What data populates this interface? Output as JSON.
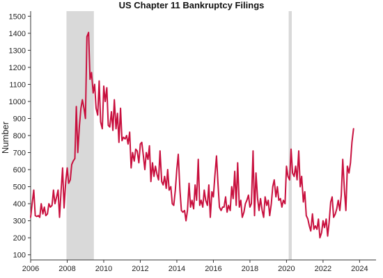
{
  "chart_data": {
    "type": "line",
    "title": "US Chapter 11 Bankruptcy Filings",
    "xlabel": "",
    "ylabel": "Number",
    "xlim": [
      2006.0,
      2024.9
    ],
    "ylim": [
      70,
      1530
    ],
    "x_ticks": [
      "2006",
      "2008",
      "2010",
      "2012",
      "2014",
      "2016",
      "2018",
      "2020",
      "2022",
      "2024"
    ],
    "y_ticks": [
      "100",
      "200",
      "300",
      "400",
      "500",
      "600",
      "700",
      "800",
      "900",
      "1000",
      "1100",
      "1200",
      "1300",
      "1400",
      "1500"
    ],
    "grid": false,
    "legend": "none",
    "colors": {
      "line": "#c8103e",
      "recession": "#d9d9d9",
      "axis": "#333333"
    },
    "recessions": [
      {
        "start": 2007.96,
        "end": 2009.46
      },
      {
        "start": 2020.12,
        "end": 2020.29
      }
    ],
    "series": [
      {
        "values": [
          [
            2006.0,
            320
          ],
          [
            2006.08,
            400
          ],
          [
            2006.17,
            480
          ],
          [
            2006.25,
            330
          ],
          [
            2006.33,
            325
          ],
          [
            2006.42,
            330
          ],
          [
            2006.5,
            320
          ],
          [
            2006.58,
            400
          ],
          [
            2006.67,
            340
          ],
          [
            2006.75,
            380
          ],
          [
            2006.83,
            330
          ],
          [
            2006.92,
            340
          ],
          [
            2007.0,
            400
          ],
          [
            2007.08,
            380
          ],
          [
            2007.17,
            390
          ],
          [
            2007.25,
            480
          ],
          [
            2007.33,
            400
          ],
          [
            2007.42,
            440
          ],
          [
            2007.5,
            480
          ],
          [
            2007.58,
            320
          ],
          [
            2007.67,
            480
          ],
          [
            2007.75,
            610
          ],
          [
            2007.83,
            375
          ],
          [
            2007.92,
            530
          ],
          [
            2008.0,
            610
          ],
          [
            2008.08,
            520
          ],
          [
            2008.17,
            540
          ],
          [
            2008.25,
            630
          ],
          [
            2008.33,
            650
          ],
          [
            2008.42,
            665
          ],
          [
            2008.5,
            970
          ],
          [
            2008.58,
            700
          ],
          [
            2008.67,
            860
          ],
          [
            2008.75,
            960
          ],
          [
            2008.83,
            1010
          ],
          [
            2008.92,
            960
          ],
          [
            2009.0,
            900
          ],
          [
            2009.08,
            1380
          ],
          [
            2009.17,
            1405
          ],
          [
            2009.25,
            1130
          ],
          [
            2009.33,
            1170
          ],
          [
            2009.42,
            1050
          ],
          [
            2009.5,
            1100
          ],
          [
            2009.58,
            960
          ],
          [
            2009.67,
            920
          ],
          [
            2009.75,
            1120
          ],
          [
            2009.83,
            880
          ],
          [
            2009.92,
            840
          ],
          [
            2010.0,
            1090
          ],
          [
            2010.08,
            1000
          ],
          [
            2010.17,
            1080
          ],
          [
            2010.25,
            860
          ],
          [
            2010.33,
            850
          ],
          [
            2010.42,
            940
          ],
          [
            2010.5,
            830
          ],
          [
            2010.58,
            1010
          ],
          [
            2010.67,
            840
          ],
          [
            2010.75,
            930
          ],
          [
            2010.83,
            760
          ],
          [
            2010.92,
            960
          ],
          [
            2011.0,
            770
          ],
          [
            2011.08,
            790
          ],
          [
            2011.17,
            780
          ],
          [
            2011.25,
            800
          ],
          [
            2011.33,
            750
          ],
          [
            2011.42,
            820
          ],
          [
            2011.5,
            610
          ],
          [
            2011.58,
            700
          ],
          [
            2011.67,
            650
          ],
          [
            2011.75,
            720
          ],
          [
            2011.83,
            710
          ],
          [
            2011.92,
            640
          ],
          [
            2012.0,
            750
          ],
          [
            2012.08,
            760
          ],
          [
            2012.17,
            680
          ],
          [
            2012.25,
            600
          ],
          [
            2012.33,
            700
          ],
          [
            2012.42,
            660
          ],
          [
            2012.5,
            740
          ],
          [
            2012.58,
            530
          ],
          [
            2012.67,
            640
          ],
          [
            2012.75,
            560
          ],
          [
            2012.83,
            620
          ],
          [
            2012.92,
            570
          ],
          [
            2013.0,
            540
          ],
          [
            2013.08,
            710
          ],
          [
            2013.17,
            530
          ],
          [
            2013.25,
            510
          ],
          [
            2013.33,
            560
          ],
          [
            2013.42,
            490
          ],
          [
            2013.5,
            600
          ],
          [
            2013.58,
            480
          ],
          [
            2013.67,
            500
          ],
          [
            2013.75,
            400
          ],
          [
            2013.83,
            390
          ],
          [
            2013.92,
            480
          ],
          [
            2014.0,
            600
          ],
          [
            2014.08,
            690
          ],
          [
            2014.17,
            480
          ],
          [
            2014.25,
            360
          ],
          [
            2014.33,
            350
          ],
          [
            2014.42,
            360
          ],
          [
            2014.5,
            300
          ],
          [
            2014.58,
            360
          ],
          [
            2014.67,
            520
          ],
          [
            2014.75,
            380
          ],
          [
            2014.83,
            420
          ],
          [
            2014.92,
            370
          ],
          [
            2015.0,
            510
          ],
          [
            2015.08,
            420
          ],
          [
            2015.17,
            660
          ],
          [
            2015.25,
            390
          ],
          [
            2015.33,
            420
          ],
          [
            2015.42,
            380
          ],
          [
            2015.5,
            480
          ],
          [
            2015.58,
            420
          ],
          [
            2015.67,
            390
          ],
          [
            2015.75,
            510
          ],
          [
            2015.83,
            320
          ],
          [
            2015.92,
            470
          ],
          [
            2016.0,
            440
          ],
          [
            2016.08,
            560
          ],
          [
            2016.17,
            680
          ],
          [
            2016.25,
            520
          ],
          [
            2016.33,
            380
          ],
          [
            2016.42,
            360
          ],
          [
            2016.5,
            380
          ],
          [
            2016.58,
            380
          ],
          [
            2016.67,
            440
          ],
          [
            2016.75,
            350
          ],
          [
            2016.83,
            390
          ],
          [
            2016.92,
            360
          ],
          [
            2017.0,
            500
          ],
          [
            2017.08,
            430
          ],
          [
            2017.17,
            590
          ],
          [
            2017.25,
            390
          ],
          [
            2017.33,
            640
          ],
          [
            2017.42,
            380
          ],
          [
            2017.5,
            420
          ],
          [
            2017.58,
            320
          ],
          [
            2017.67,
            350
          ],
          [
            2017.75,
            400
          ],
          [
            2017.83,
            420
          ],
          [
            2017.92,
            450
          ],
          [
            2018.0,
            380
          ],
          [
            2018.08,
            400
          ],
          [
            2018.17,
            710
          ],
          [
            2018.25,
            330
          ],
          [
            2018.33,
            580
          ],
          [
            2018.42,
            430
          ],
          [
            2018.5,
            360
          ],
          [
            2018.58,
            430
          ],
          [
            2018.67,
            360
          ],
          [
            2018.75,
            320
          ],
          [
            2018.83,
            440
          ],
          [
            2018.92,
            390
          ],
          [
            2019.0,
            420
          ],
          [
            2019.08,
            330
          ],
          [
            2019.17,
            400
          ],
          [
            2019.25,
            500
          ],
          [
            2019.33,
            540
          ],
          [
            2019.42,
            440
          ],
          [
            2019.5,
            500
          ],
          [
            2019.58,
            420
          ],
          [
            2019.67,
            430
          ],
          [
            2019.75,
            380
          ],
          [
            2019.83,
            420
          ],
          [
            2019.92,
            400
          ],
          [
            2020.0,
            620
          ],
          [
            2020.08,
            560
          ],
          [
            2020.17,
            540
          ],
          [
            2020.25,
            720
          ],
          [
            2020.33,
            580
          ],
          [
            2020.42,
            560
          ],
          [
            2020.5,
            620
          ],
          [
            2020.58,
            540
          ],
          [
            2020.67,
            710
          ],
          [
            2020.75,
            500
          ],
          [
            2020.83,
            560
          ],
          [
            2020.92,
            410
          ],
          [
            2021.0,
            470
          ],
          [
            2021.08,
            330
          ],
          [
            2021.17,
            310
          ],
          [
            2021.25,
            270
          ],
          [
            2021.33,
            240
          ],
          [
            2021.42,
            340
          ],
          [
            2021.5,
            250
          ],
          [
            2021.58,
            270
          ],
          [
            2021.67,
            250
          ],
          [
            2021.75,
            310
          ],
          [
            2021.83,
            200
          ],
          [
            2021.92,
            230
          ],
          [
            2022.0,
            300
          ],
          [
            2022.08,
            260
          ],
          [
            2022.17,
            310
          ],
          [
            2022.25,
            210
          ],
          [
            2022.33,
            290
          ],
          [
            2022.42,
            410
          ],
          [
            2022.5,
            440
          ],
          [
            2022.58,
            320
          ],
          [
            2022.67,
            340
          ],
          [
            2022.75,
            370
          ],
          [
            2022.83,
            420
          ],
          [
            2022.92,
            360
          ],
          [
            2023.0,
            450
          ],
          [
            2023.08,
            660
          ],
          [
            2023.17,
            480
          ],
          [
            2023.25,
            360
          ],
          [
            2023.33,
            620
          ],
          [
            2023.42,
            580
          ],
          [
            2023.5,
            640
          ],
          [
            2023.58,
            760
          ],
          [
            2023.67,
            840
          ]
        ]
      }
    ]
  }
}
